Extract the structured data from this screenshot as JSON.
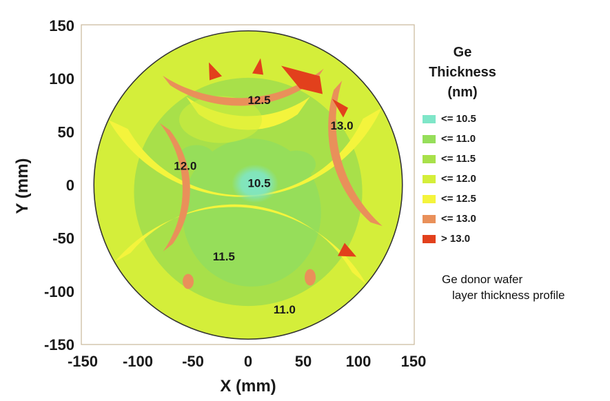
{
  "chart_data": {
    "type": "heatmap",
    "title": "",
    "xlabel": "X (mm)",
    "ylabel": "Y (mm)",
    "xlim": [
      -150,
      150
    ],
    "ylim": [
      -150,
      150
    ],
    "x_ticks": [
      -150,
      -100,
      -50,
      0,
      50,
      100,
      150
    ],
    "y_ticks": [
      150,
      100,
      50,
      0,
      -50,
      -100,
      -150
    ],
    "x_tick_labels": [
      "-150",
      "-100",
      "-50",
      "0",
      "50",
      "100",
      "150"
    ],
    "y_tick_labels": [
      "150",
      "100",
      "50",
      "0",
      "-50",
      "-100",
      "-150"
    ],
    "wafer_radius_mm": 150,
    "legend": {
      "title_lines": [
        "Ge",
        "Thickness",
        "(nm)"
      ],
      "placement": "right",
      "items": [
        {
          "label": "<= 10.5",
          "color": "#7fe6c8"
        },
        {
          "label": "<= 11.0",
          "color": "#96de5a"
        },
        {
          "label": "<= 11.5",
          "color": "#a8e04a"
        },
        {
          "label": "<= 12.0",
          "color": "#d4ee3a"
        },
        {
          "label": "<= 12.5",
          "color": "#f4f43c"
        },
        {
          "label": "<= 13.0",
          "color": "#e9905a"
        },
        {
          "label": "> 13.0",
          "color": "#e2401c"
        }
      ]
    },
    "contour_labels": [
      {
        "text": "12.5",
        "x": 10,
        "y": 80
      },
      {
        "text": "13.0",
        "x": 85,
        "y": 56
      },
      {
        "text": "12.0",
        "x": -57,
        "y": 18
      },
      {
        "text": "10.5",
        "x": 10,
        "y": 2
      },
      {
        "text": "11.5",
        "x": -22,
        "y": -67
      },
      {
        "text": "11.0",
        "x": 33,
        "y": -117
      }
    ]
  },
  "caption": {
    "line1": "Ge donor wafer",
    "line2": "layer thickness profile"
  }
}
